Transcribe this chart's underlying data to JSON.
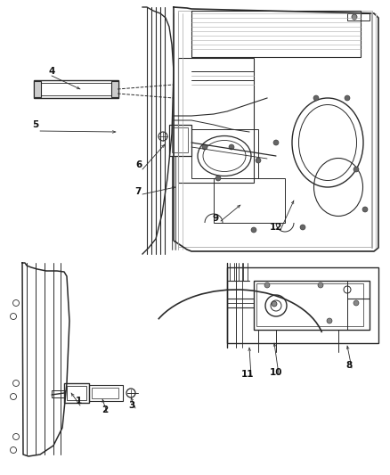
{
  "bg_color": "#ffffff",
  "line_color": "#2a2a2a",
  "label_color": "#111111",
  "fig_width": 4.38,
  "fig_height": 5.33,
  "dpi": 100
}
